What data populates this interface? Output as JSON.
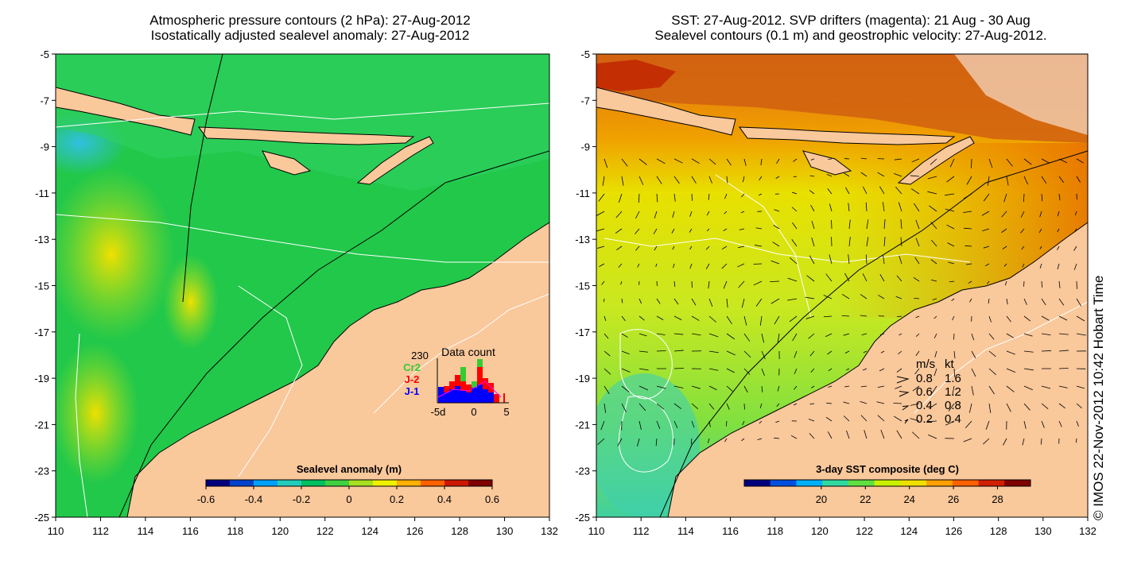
{
  "left_panel": {
    "title_line1": "Atmospheric pressure contours (2 hPa): 27-Aug-2012",
    "title_line2": "Isostatically adjusted sealevel anomaly: 27-Aug-2012",
    "colorbar": {
      "label": "Sealevel anomaly (m)",
      "ticks": [
        "-0.6",
        "-0.4",
        "-0.2",
        "0",
        "0.2",
        "0.4",
        "0.6"
      ],
      "colors": [
        "#00007f",
        "#0044cc",
        "#00a0ff",
        "#22ccbb",
        "#00c060",
        "#40d040",
        "#a8e020",
        "#f0f000",
        "#ffb000",
        "#ff6000",
        "#cc1800",
        "#800000"
      ]
    },
    "data_count": {
      "title": "Data count",
      "max": "230",
      "legend": [
        {
          "label": "Cr2",
          "color": "#33cc33"
        },
        {
          "label": "J-2",
          "color": "#ff0000"
        },
        {
          "label": "J-1",
          "color": "#0000ff"
        }
      ],
      "xticks": [
        "-5d",
        "0",
        "5"
      ]
    }
  },
  "right_panel": {
    "title_line1": "SST: 27-Aug-2012. SVP drifters (magenta): 21 Aug - 30 Aug",
    "title_line2": "Sealevel contours (0.1 m) and geostrophic velocity: 27-Aug-2012.",
    "colorbar": {
      "label": "3-day SST composite (deg C)",
      "ticks": [
        "20",
        "22",
        "24",
        "26",
        "28"
      ],
      "colors": [
        "#00007f",
        "#0050e0",
        "#00b0ff",
        "#30d8a0",
        "#60e040",
        "#c8f000",
        "#f0e000",
        "#ffa000",
        "#ff6000",
        "#d02000",
        "#800000"
      ]
    },
    "velocity_legend": {
      "header_ms": "m/s",
      "header_kt": "kt",
      "rows": [
        {
          "ms": "0.8",
          "kt": "1.6"
        },
        {
          "ms": "0.6",
          "kt": "1.2"
        },
        {
          "ms": "0.4",
          "kt": "0.8"
        },
        {
          "ms": "0.2",
          "kt": "0.4"
        }
      ]
    }
  },
  "axes": {
    "lon_range": [
      110,
      132
    ],
    "lat_range": [
      -25,
      -5
    ],
    "x_ticks": [
      "110",
      "112",
      "114",
      "116",
      "118",
      "120",
      "122",
      "124",
      "126",
      "128",
      "130",
      "132"
    ],
    "y_ticks": [
      "-5",
      "-7",
      "-9",
      "-11",
      "-13",
      "-15",
      "-17",
      "-19",
      "-21",
      "-23",
      "-25"
    ]
  },
  "colors": {
    "land": "#f9c89b",
    "ocean_sla": "#22c84a",
    "ocean_sst": "#d8ea20"
  },
  "copyright": "© IMOS 22-Nov-2012 10:42 Hobart Time"
}
